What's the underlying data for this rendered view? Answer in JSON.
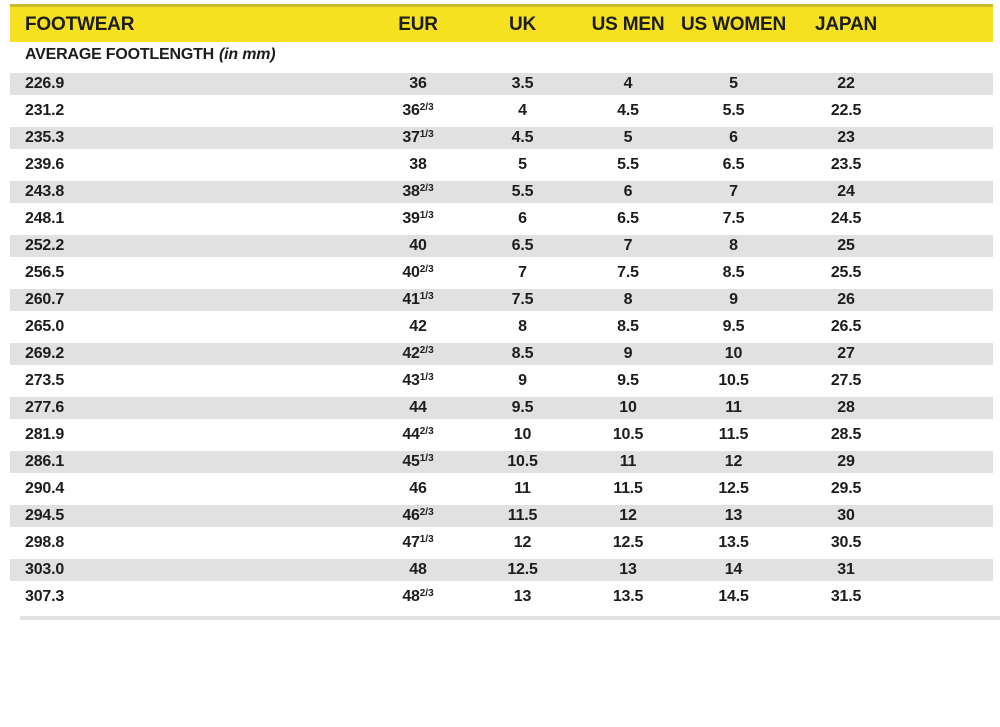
{
  "colors": {
    "header_bg": "#f6e120",
    "header_edge": "#c9bb2a",
    "row_alt_bg": "#e1e1e1",
    "text": "#1d1d1b"
  },
  "table": {
    "header": {
      "footwear": "FOOTWEAR",
      "eur": "EUR",
      "uk": "UK",
      "us_men": "US MEN",
      "us_women": "US WOMEN",
      "japan": "JAPAN"
    },
    "subheader": {
      "label": "AVERAGE FOOTLENGTH",
      "unit": "(in mm)"
    },
    "columns": [
      "footlength_mm",
      "eur",
      "uk",
      "us_men",
      "us_women",
      "japan"
    ],
    "rows": [
      [
        "226.9",
        "36",
        "3.5",
        "4",
        "5",
        "22"
      ],
      [
        "231.2",
        "36 2/3",
        "4",
        "4.5",
        "5.5",
        "22.5"
      ],
      [
        "235.3",
        "37 1/3",
        "4.5",
        "5",
        "6",
        "23"
      ],
      [
        "239.6",
        "38",
        "5",
        "5.5",
        "6.5",
        "23.5"
      ],
      [
        "243.8",
        "38 2/3",
        "5.5",
        "6",
        "7",
        "24"
      ],
      [
        "248.1",
        "39 1/3",
        "6",
        "6.5",
        "7.5",
        "24.5"
      ],
      [
        "252.2",
        "40",
        "6.5",
        "7",
        "8",
        "25"
      ],
      [
        "256.5",
        "40 2/3",
        "7",
        "7.5",
        "8.5",
        "25.5"
      ],
      [
        "260.7",
        "41 1/3",
        "7.5",
        "8",
        "9",
        "26"
      ],
      [
        "265.0",
        "42",
        "8",
        "8.5",
        "9.5",
        "26.5"
      ],
      [
        "269.2",
        "42 2/3",
        "8.5",
        "9",
        "10",
        "27"
      ],
      [
        "273.5",
        "43 1/3",
        "9",
        "9.5",
        "10.5",
        "27.5"
      ],
      [
        "277.6",
        "44",
        "9.5",
        "10",
        "11",
        "28"
      ],
      [
        "281.9",
        "44 2/3",
        "10",
        "10.5",
        "11.5",
        "28.5"
      ],
      [
        "286.1",
        "45 1/3",
        "10.5",
        "11",
        "12",
        "29"
      ],
      [
        "290.4",
        "46",
        "11",
        "11.5",
        "12.5",
        "29.5"
      ],
      [
        "294.5",
        "46 2/3",
        "11.5",
        "12",
        "13",
        "30"
      ],
      [
        "298.8",
        "47 1/3",
        "12",
        "12.5",
        "13.5",
        "30.5"
      ],
      [
        "303.0",
        "48",
        "12.5",
        "13",
        "14",
        "31"
      ],
      [
        "307.3",
        "48 2/3",
        "13",
        "13.5",
        "14.5",
        "31.5"
      ]
    ]
  }
}
